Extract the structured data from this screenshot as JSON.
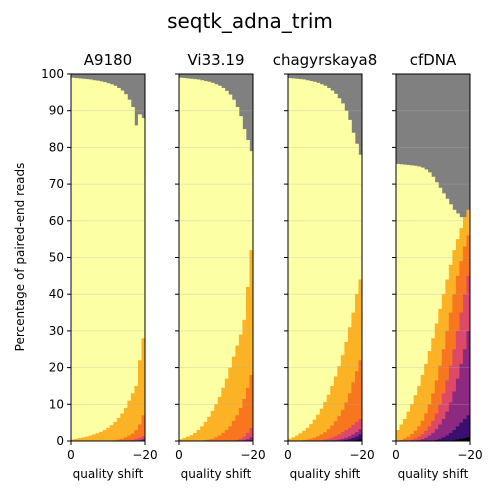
{
  "chart_data": {
    "type": "area",
    "title": "seqtk_adna_trim",
    "ylabel": "Percentage of paired-end reads",
    "xlabel": "quality shift",
    "xlim": [
      0,
      -20
    ],
    "ylim": [
      0,
      100
    ],
    "x_ticks": [
      "0",
      "−20"
    ],
    "y_ticks": [
      "0",
      "10",
      "20",
      "30",
      "40",
      "50",
      "60",
      "70",
      "80",
      "90",
      "100"
    ],
    "grid": "horizontal",
    "band_order_bottom_to_top": [
      "#000004",
      "#3b0f70",
      "#8c2981",
      "#de4968",
      "#f7761f",
      "#fcb225",
      "#fcffa4",
      "#808080"
    ],
    "panels": [
      {
        "name": "A9180",
        "x": [
          0,
          -1,
          -2,
          -3,
          -4,
          -5,
          -6,
          -7,
          -8,
          -9,
          -10,
          -11,
          -12,
          -13,
          -14,
          -15,
          -16,
          -17,
          -18,
          -19,
          -20
        ],
        "bands": [
          {
            "color": "#8c2981",
            "top": [
              0,
              0,
              0,
              0,
              0,
              0,
              0,
              0,
              0,
              0,
              0,
              0,
              0,
              0,
              0,
              0,
              0,
              0,
              0,
              0.2,
              0.5
            ]
          },
          {
            "color": "#de4968",
            "top": [
              0,
              0,
              0,
              0,
              0,
              0,
              0,
              0,
              0,
              0,
              0,
              0,
              0,
              0,
              0,
              0,
              0.1,
              0.3,
              0.6,
              0.9,
              1.3
            ]
          },
          {
            "color": "#f7761f",
            "top": [
              0,
              0,
              0,
              0,
              0,
              0,
              0,
              0,
              0,
              0,
              0,
              0.1,
              0.2,
              0.4,
              0.6,
              1.0,
              1.5,
              2.0,
              3.0,
              4.5,
              7.0
            ]
          },
          {
            "color": "#fcb225",
            "top": [
              0.4,
              0.6,
              0.8,
              1.0,
              1.2,
              1.5,
              1.8,
              2.1,
              2.5,
              3.0,
              3.6,
              4.3,
              5.2,
              6.3,
              7.5,
              9.0,
              11,
              13,
              15,
              22,
              28
            ]
          },
          {
            "color": "#fcffa4",
            "top": [
              99.0,
              98.9,
              98.8,
              98.7,
              98.6,
              98.5,
              98.3,
              98.2,
              98.0,
              97.8,
              97.5,
              97.2,
              96.8,
              96.2,
              95.5,
              94.5,
              93,
              91,
              86,
              89,
              88
            ]
          }
        ]
      },
      {
        "name": "Vi33.19",
        "x": [
          0,
          -1,
          -2,
          -3,
          -4,
          -5,
          -6,
          -7,
          -8,
          -9,
          -10,
          -11,
          -12,
          -13,
          -14,
          -15,
          -16,
          -17,
          -18,
          -19,
          -20
        ],
        "bands": [
          {
            "color": "#8c2981",
            "top": [
              0,
              0,
              0,
              0,
              0,
              0,
              0,
              0,
              0,
              0,
              0,
              0,
              0,
              0,
              0,
              0,
              0,
              0,
              0.2,
              0.5,
              1.0
            ]
          },
          {
            "color": "#de4968",
            "top": [
              0,
              0,
              0,
              0,
              0,
              0,
              0,
              0,
              0,
              0,
              0,
              0,
              0,
              0,
              0,
              0.1,
              0.3,
              0.6,
              1.2,
              2.2,
              3.5
            ]
          },
          {
            "color": "#f7761f",
            "top": [
              0,
              0,
              0,
              0,
              0,
              0,
              0.1,
              0.2,
              0.4,
              0.6,
              1.0,
              1.5,
              2.2,
              3.0,
              4.0,
              5.5,
              7.0,
              9.0,
              11.5,
              14.5,
              18
            ]
          },
          {
            "color": "#fcb225",
            "top": [
              0.5,
              0.8,
              1.2,
              1.6,
              2.2,
              3.0,
              4.0,
              5.2,
              6.6,
              8.2,
              10,
              12,
              14.5,
              17,
              20,
              23,
              26,
              29,
              33,
              42,
              52
            ]
          },
          {
            "color": "#fcffa4",
            "top": [
              99.0,
              98.9,
              98.8,
              98.7,
              98.6,
              98.5,
              98.3,
              98.1,
              97.9,
              97.6,
              97.2,
              96.8,
              96.2,
              95.4,
              94.4,
              93.0,
              91.0,
              88.5,
              85,
              82,
              79
            ]
          }
        ]
      },
      {
        "name": "chagyrskaya8",
        "x": [
          0,
          -1,
          -2,
          -3,
          -4,
          -5,
          -6,
          -7,
          -8,
          -9,
          -10,
          -11,
          -12,
          -13,
          -14,
          -15,
          -16,
          -17,
          -18,
          -19,
          -20
        ],
        "bands": [
          {
            "color": "#000004",
            "top": [
              0,
              0,
              0,
              0,
              0,
              0,
              0,
              0,
              0,
              0,
              0,
              0,
              0,
              0,
              0,
              0,
              0,
              0,
              0.1,
              0.2,
              0.4
            ]
          },
          {
            "color": "#3b0f70",
            "top": [
              0,
              0,
              0,
              0,
              0,
              0,
              0,
              0,
              0,
              0,
              0,
              0,
              0,
              0,
              0,
              0.1,
              0.3,
              0.5,
              0.8,
              1.2,
              1.8
            ]
          },
          {
            "color": "#8c2981",
            "top": [
              0,
              0,
              0,
              0,
              0,
              0,
              0,
              0,
              0,
              0,
              0,
              0,
              0.1,
              0.2,
              0.4,
              0.6,
              0.9,
              1.3,
              1.8,
              2.4,
              3.2
            ]
          },
          {
            "color": "#de4968",
            "top": [
              0,
              0,
              0,
              0,
              0,
              0,
              0,
              0,
              0.1,
              0.2,
              0.4,
              0.6,
              0.9,
              1.3,
              1.8,
              2.4,
              3.0,
              3.6,
              4.4,
              5.2,
              6.0
            ]
          },
          {
            "color": "#f7761f",
            "top": [
              0,
              0,
              0,
              0.1,
              0.2,
              0.4,
              0.6,
              0.9,
              1.3,
              1.8,
              2.4,
              3.2,
              4.2,
              5.4,
              6.8,
              8.5,
              10.5,
              13,
              16,
              19,
              22
            ]
          },
          {
            "color": "#fcb225",
            "top": [
              0.6,
              1.0,
              1.5,
              2.1,
              2.8,
              3.6,
              4.6,
              5.8,
              7.2,
              8.8,
              10.6,
              12.6,
              15,
              17.6,
              20.4,
              23.4,
              27,
              31,
              35,
              40,
              44
            ]
          },
          {
            "color": "#fcffa4",
            "top": [
              98.9,
              98.8,
              98.7,
              98.6,
              98.5,
              98.3,
              98.1,
              97.9,
              97.6,
              97.2,
              96.8,
              96.2,
              95.5,
              94.6,
              93.4,
              92,
              90,
              87.5,
              84,
              81,
              78
            ]
          }
        ]
      },
      {
        "name": "cfDNA",
        "x": [
          0,
          -1,
          -2,
          -3,
          -4,
          -5,
          -6,
          -7,
          -8,
          -9,
          -10,
          -11,
          -12,
          -13,
          -14,
          -15,
          -16,
          -17,
          -18,
          -19,
          -20
        ],
        "bands": [
          {
            "color": "#000004",
            "top": [
              0,
              0,
              0,
              0,
              0,
              0,
              0,
              0,
              0,
              0,
              0,
              0,
              0,
              0,
              0,
              0,
              0.2,
              0.4,
              0.6,
              0.8,
              1.0
            ]
          },
          {
            "color": "#3b0f70",
            "top": [
              0,
              0,
              0,
              0,
              0,
              0,
              0,
              0,
              0,
              0,
              0,
              0.3,
              0.6,
              1.0,
              1.5,
              2.2,
              3.0,
              4.0,
              5.0,
              6.0,
              7.0
            ]
          },
          {
            "color": "#8c2981",
            "top": [
              0,
              0,
              0,
              0,
              0,
              0,
              0.2,
              0.5,
              0.9,
              1.5,
              2.2,
              3.2,
              4.5,
              6,
              8,
              10.5,
              13.5,
              17,
              21,
              25,
              30
            ]
          },
          {
            "color": "#de4968",
            "top": [
              0,
              0,
              0,
              0,
              0.3,
              0.7,
              1.2,
              1.9,
              2.8,
              4.0,
              5.5,
              7.5,
              10,
              13,
              16.5,
              20.5,
              25,
              30,
              35,
              40,
              45
            ]
          },
          {
            "color": "#f7761f",
            "top": [
              0,
              0.3,
              0.7,
              1.2,
              1.9,
              2.8,
              4.0,
              5.5,
              7.5,
              10,
              13,
              16.5,
              20.5,
              25,
              30,
              35,
              40,
              45,
              49,
              53,
              56
            ]
          },
          {
            "color": "#fcb225",
            "top": [
              3,
              4.5,
              6,
              8,
              10,
              12.5,
              15,
              18,
              21,
              24.5,
              28,
              32,
              36,
              40,
              44,
              48,
              52,
              55,
              58,
              61,
              63
            ]
          },
          {
            "color": "#fcffa4",
            "top": [
              75.5,
              75.4,
              75.3,
              75.2,
              75.1,
              75.0,
              74.8,
              74.5,
              74.0,
              73.2,
              72.0,
              70.5,
              69,
              67.5,
              66,
              64.5,
              63,
              62,
              61,
              60.5,
              62
            ]
          }
        ]
      }
    ]
  }
}
